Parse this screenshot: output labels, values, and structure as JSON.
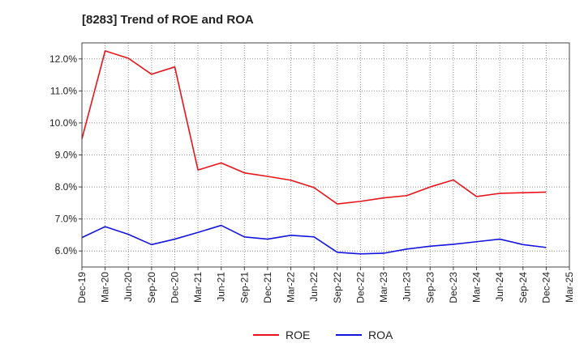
{
  "chart_data": {
    "type": "line",
    "title": "[8283]  Trend of ROE and ROA",
    "xlabel": "",
    "ylabel": "",
    "x": [
      "Dec-19",
      "Mar-20",
      "Jun-20",
      "Sep-20",
      "Dec-20",
      "Mar-21",
      "Jun-21",
      "Sep-21",
      "Dec-21",
      "Mar-22",
      "Jun-22",
      "Sep-22",
      "Dec-22",
      "Mar-23",
      "Jun-23",
      "Sep-23",
      "Dec-23",
      "Mar-24",
      "Jun-24",
      "Sep-24",
      "Dec-24"
    ],
    "x_ticks": [
      "Dec-19",
      "Mar-20",
      "Jun-20",
      "Sep-20",
      "Dec-20",
      "Mar-21",
      "Jun-21",
      "Sep-21",
      "Dec-21",
      "Mar-22",
      "Jun-22",
      "Sep-22",
      "Dec-22",
      "Mar-23",
      "Jun-23",
      "Sep-23",
      "Dec-23",
      "Mar-24",
      "Jun-24",
      "Sep-24",
      "Dec-24",
      "Mar-25"
    ],
    "y_ticks": [
      "6.0%",
      "7.0%",
      "8.0%",
      "9.0%",
      "10.0%",
      "11.0%",
      "12.0%"
    ],
    "y_tick_values": [
      6,
      7,
      8,
      9,
      10,
      11,
      12
    ],
    "ylim": [
      5.5,
      12.5
    ],
    "grid": true,
    "legend_position": "bottom-center",
    "series": [
      {
        "name": "ROE",
        "color": "#e8141b",
        "values": [
          9.5,
          12.25,
          12.02,
          11.52,
          11.75,
          8.53,
          8.75,
          8.44,
          8.33,
          8.21,
          7.98,
          7.47,
          7.55,
          7.66,
          7.73,
          8.0,
          8.22,
          7.7,
          7.8,
          7.82,
          7.84
        ]
      },
      {
        "name": "ROA",
        "color": "#1414e0",
        "values": [
          6.42,
          6.76,
          6.52,
          6.2,
          6.37,
          6.58,
          6.8,
          6.44,
          6.37,
          6.49,
          6.44,
          5.96,
          5.91,
          5.93,
          6.06,
          6.15,
          6.21,
          6.29,
          6.37,
          6.2,
          6.11
        ]
      }
    ]
  }
}
